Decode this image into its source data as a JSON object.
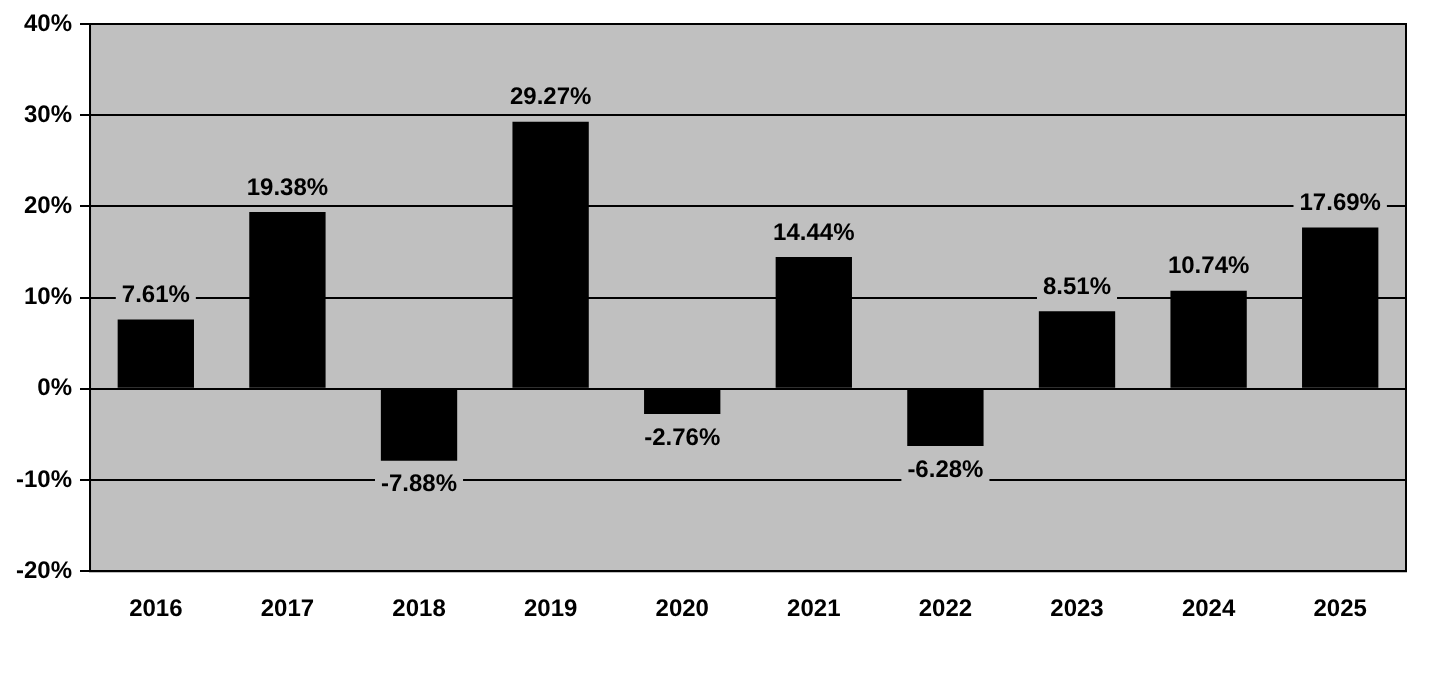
{
  "chart_data": {
    "type": "bar",
    "categories": [
      "2016",
      "2017",
      "2018",
      "2019",
      "2020",
      "2021",
      "2022",
      "2023",
      "2024",
      "2025"
    ],
    "values": [
      7.61,
      19.38,
      -7.88,
      29.27,
      -2.76,
      14.44,
      -6.28,
      8.51,
      10.74,
      17.69
    ],
    "value_labels": [
      "7.61%",
      "19.38%",
      "-7.88%",
      "29.27%",
      "-2.76%",
      "14.44%",
      "-6.28%",
      "8.51%",
      "10.74%",
      "17.69%"
    ],
    "color": "#000000",
    "ylim": [
      -20,
      40
    ],
    "yticks": [
      {
        "value": -20,
        "label": "-20%"
      },
      {
        "value": -10,
        "label": "-10%"
      },
      {
        "value": 0,
        "label": "0%"
      },
      {
        "value": 10,
        "label": "10%"
      },
      {
        "value": 20,
        "label": "20%"
      },
      {
        "value": 30,
        "label": "30%"
      },
      {
        "value": 40,
        "label": "40%"
      }
    ],
    "grid": "y"
  }
}
